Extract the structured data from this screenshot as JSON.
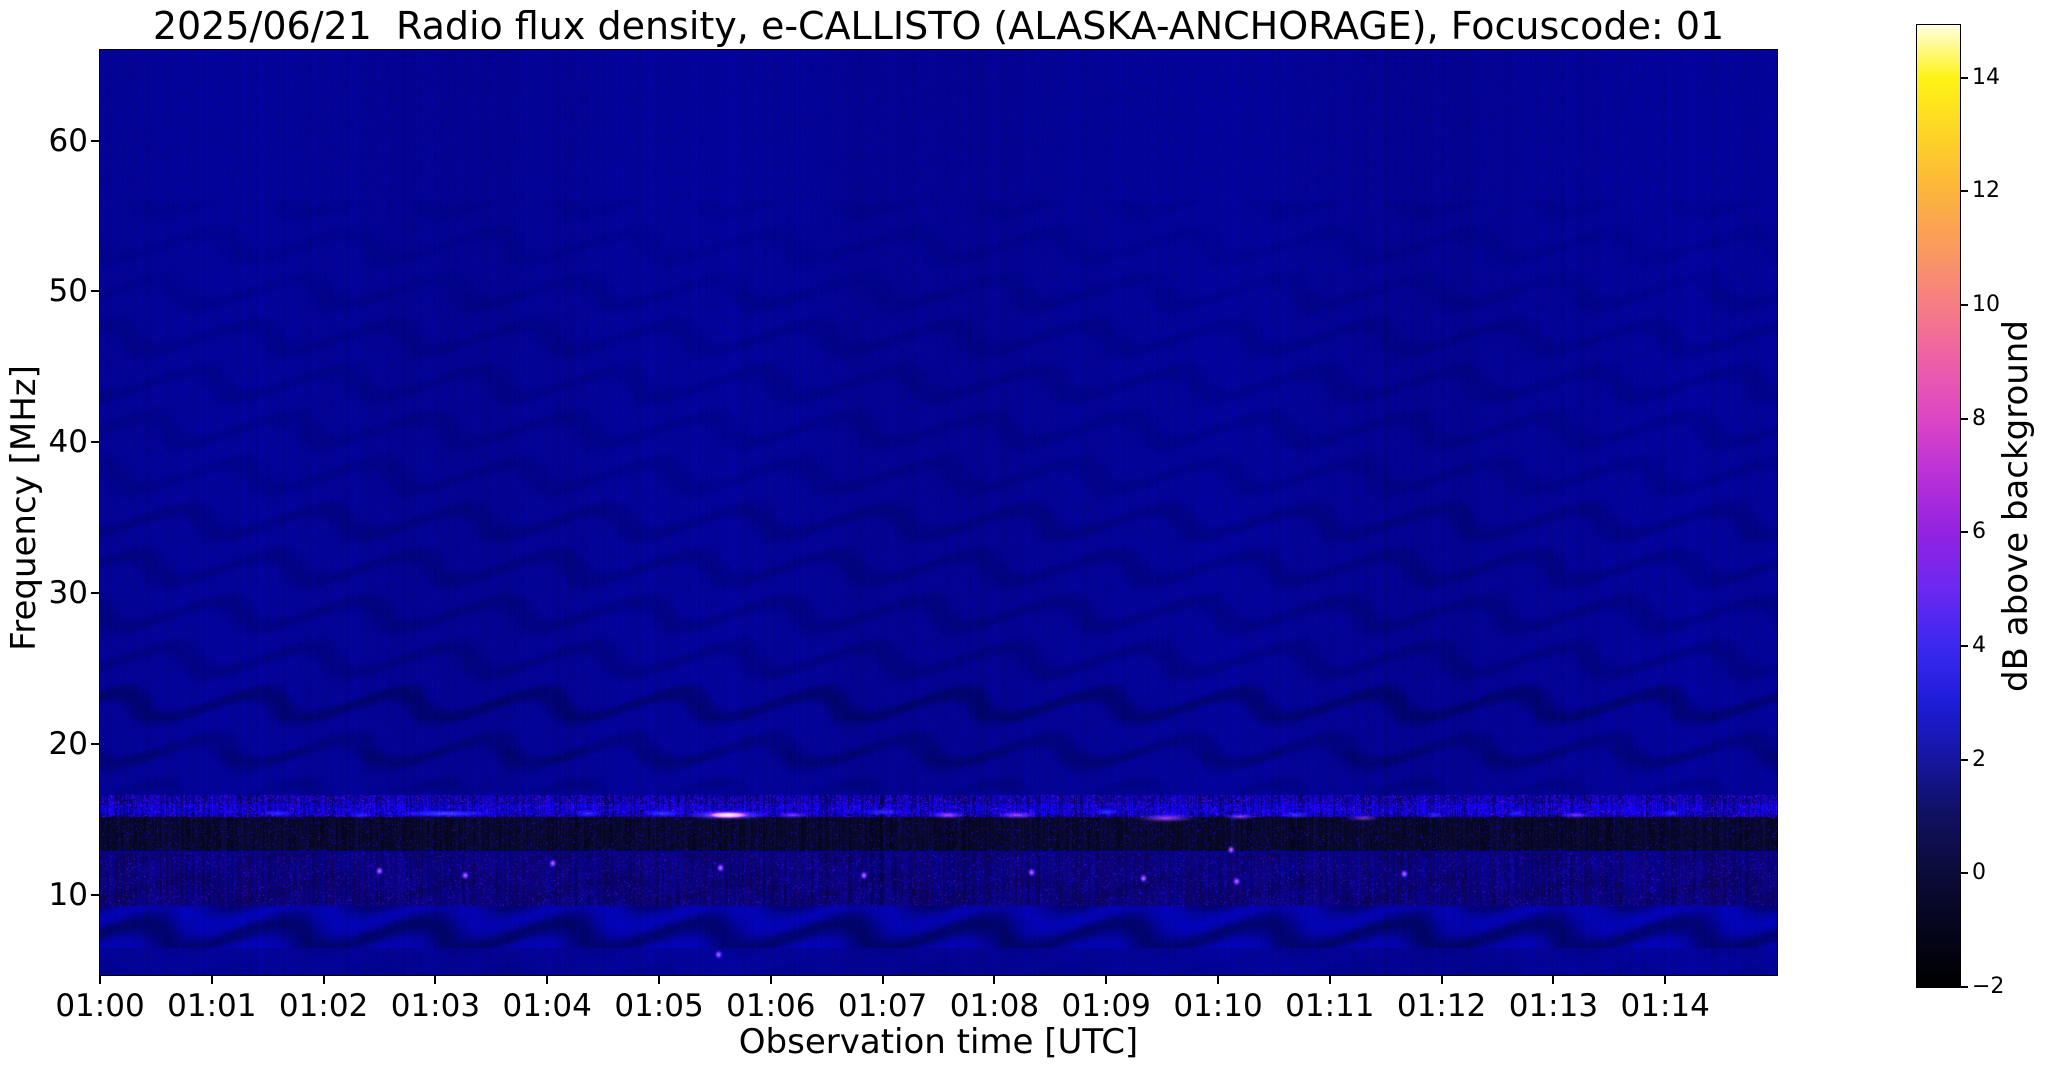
{
  "title": "2025/06/21  Radio flux density, e-CALLISTO (ALASKA-ANCHORAGE), Focuscode: 01",
  "chart_data": {
    "type": "heatmap",
    "title": "2025/06/21  Radio flux density, e-CALLISTO (ALASKA-ANCHORAGE), Focuscode: 01",
    "xlabel": "Observation time [UTC]",
    "ylabel": "Frequency [MHz]",
    "colorbar_label": "dB above background",
    "x_tick_labels": [
      "01:00",
      "01:01",
      "01:02",
      "01:03",
      "01:04",
      "01:05",
      "01:06",
      "01:07",
      "01:08",
      "01:09",
      "01:10",
      "01:11",
      "01:12",
      "01:13",
      "01:14"
    ],
    "x_tick_minutes": [
      0,
      1,
      2,
      3,
      4,
      5,
      6,
      7,
      8,
      9,
      10,
      11,
      12,
      13,
      14
    ],
    "xlim_seconds": [
      0,
      900
    ],
    "y_tick_values": [
      60,
      50,
      40,
      30,
      20,
      10
    ],
    "ylim_mhz": [
      4.7,
      66.0
    ],
    "grid": false,
    "colormap": "gnuplot2",
    "colorbar_tick_values": [
      14,
      12,
      10,
      8,
      6,
      4,
      2,
      0,
      -2
    ],
    "colorbar_range": [
      -2,
      14.93
    ],
    "colormap_stops": [
      {
        "v": -2.0,
        "c": "#000000"
      },
      {
        "v": -1.0,
        "c": "#05051c"
      },
      {
        "v": 0.0,
        "c": "#0b0b3a"
      },
      {
        "v": 1.0,
        "c": "#101060"
      },
      {
        "v": 2.0,
        "c": "#1616a0"
      },
      {
        "v": 3.0,
        "c": "#1d1dd8"
      },
      {
        "v": 4.0,
        "c": "#3c28f0"
      },
      {
        "v": 5.0,
        "c": "#6b28f0"
      },
      {
        "v": 6.0,
        "c": "#9322e0"
      },
      {
        "v": 7.0,
        "c": "#b830d8"
      },
      {
        "v": 8.0,
        "c": "#dc46c4"
      },
      {
        "v": 9.0,
        "c": "#ed5fa8"
      },
      {
        "v": 10.0,
        "c": "#f67d84"
      },
      {
        "v": 11.0,
        "c": "#fa9a5e"
      },
      {
        "v": 12.0,
        "c": "#fcb43c"
      },
      {
        "v": 13.0,
        "c": "#fdd426"
      },
      {
        "v": 14.0,
        "c": "#fef316"
      },
      {
        "v": 14.93,
        "c": "#fffee0"
      }
    ],
    "background_color": "#020296",
    "ripple_regions": [
      {
        "f": [
          50.0,
          56.0
        ],
        "amp": 9
      },
      {
        "f": [
          36.0,
          50.0
        ],
        "amp": 14
      },
      {
        "f": [
          24.0,
          36.0
        ],
        "amp": 20
      },
      {
        "f": [
          21.5,
          24.0
        ],
        "amp": 38
      },
      {
        "f": [
          19.6,
          21.5
        ],
        "amp": 24
      },
      {
        "f": [
          18.6,
          19.6
        ],
        "amp": 34
      },
      {
        "f": [
          17.2,
          18.6
        ],
        "amp": 22
      },
      {
        "f": [
          16.6,
          17.2
        ],
        "amp": 12
      },
      {
        "f": [
          6.5,
          9.5
        ],
        "amp": 42
      },
      {
        "f": [
          4.7,
          6.5
        ],
        "amp": 7
      }
    ],
    "bands": [
      {
        "range_mhz": [
          15.2,
          16.6
        ],
        "type": "bright-speckle-band"
      },
      {
        "range_mhz": [
          12.9,
          15.2
        ],
        "type": "dark-band"
      },
      {
        "range_mhz": [
          9.3,
          12.8
        ],
        "type": "speckle-band"
      },
      {
        "range_mhz": [
          6.5,
          9.5
        ],
        "type": "strong-ripple-band"
      }
    ],
    "bursts": [
      {
        "t": 95,
        "dur": 20,
        "f": 15.4,
        "bw": 0.5,
        "kind": "blue",
        "i": 0.55
      },
      {
        "t": 140,
        "dur": 14,
        "f": 15.3,
        "bw": 0.4,
        "kind": "blue",
        "i": 0.45
      },
      {
        "t": 185,
        "dur": 60,
        "f": 15.4,
        "bw": 0.55,
        "kind": "blue",
        "i": 0.8
      },
      {
        "t": 262,
        "dur": 18,
        "f": 15.4,
        "bw": 0.45,
        "kind": "blue",
        "i": 0.55
      },
      {
        "t": 302,
        "dur": 26,
        "f": 15.4,
        "bw": 0.5,
        "kind": "blue",
        "i": 0.7
      },
      {
        "t": 337,
        "dur": 52,
        "f": 15.3,
        "bw": 0.75,
        "kind": "pink-core",
        "i": 1.0
      },
      {
        "t": 372,
        "dur": 22,
        "f": 15.3,
        "bw": 0.5,
        "kind": "magenta",
        "i": 0.6
      },
      {
        "t": 420,
        "dur": 26,
        "f": 15.5,
        "bw": 0.4,
        "kind": "blue",
        "i": 0.6
      },
      {
        "t": 455,
        "dur": 24,
        "f": 15.3,
        "bw": 0.6,
        "kind": "magenta",
        "i": 0.85
      },
      {
        "t": 492,
        "dur": 28,
        "f": 15.3,
        "bw": 0.6,
        "kind": "magenta",
        "i": 0.8
      },
      {
        "t": 540,
        "dur": 16,
        "f": 15.5,
        "bw": 0.4,
        "kind": "blue",
        "i": 0.6
      },
      {
        "t": 572,
        "dur": 40,
        "f": 15.1,
        "bw": 0.7,
        "kind": "magenta",
        "i": 0.8
      },
      {
        "t": 612,
        "dur": 22,
        "f": 15.2,
        "bw": 0.5,
        "kind": "magenta",
        "i": 0.7
      },
      {
        "t": 642,
        "dur": 18,
        "f": 15.3,
        "bw": 0.5,
        "kind": "blue",
        "i": 0.6
      },
      {
        "t": 678,
        "dur": 22,
        "f": 15.1,
        "bw": 0.5,
        "kind": "magenta",
        "i": 0.6
      },
      {
        "t": 716,
        "dur": 14,
        "f": 15.3,
        "bw": 0.4,
        "kind": "blue",
        "i": 0.5
      },
      {
        "t": 760,
        "dur": 12,
        "f": 15.4,
        "bw": 0.4,
        "kind": "blue",
        "i": 0.45
      },
      {
        "t": 792,
        "dur": 22,
        "f": 15.3,
        "bw": 0.5,
        "kind": "magenta",
        "i": 0.55
      },
      {
        "t": 843,
        "dur": 12,
        "f": 15.4,
        "bw": 0.4,
        "kind": "blue",
        "i": 0.5
      }
    ],
    "point_bursts": [
      {
        "t": 150,
        "f": 11.6
      },
      {
        "t": 196,
        "f": 11.3
      },
      {
        "t": 243,
        "f": 12.1
      },
      {
        "t": 333,
        "f": 11.8
      },
      {
        "t": 332,
        "f": 6.05
      },
      {
        "t": 410,
        "f": 11.3
      },
      {
        "t": 500,
        "f": 11.5
      },
      {
        "t": 560,
        "f": 11.1
      },
      {
        "t": 607,
        "f": 13.0
      },
      {
        "t": 610,
        "f": 10.9
      },
      {
        "t": 700,
        "f": 11.4
      }
    ]
  }
}
